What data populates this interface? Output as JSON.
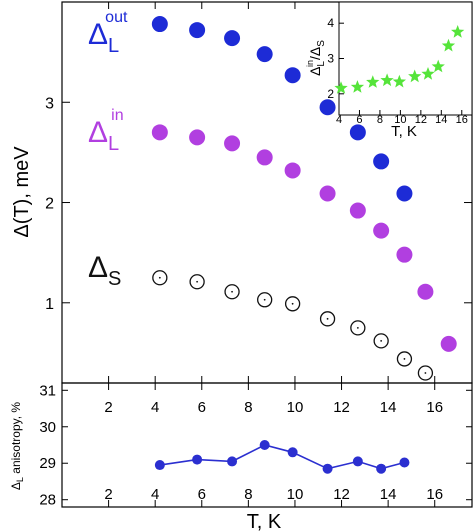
{
  "chart_data": [
    {
      "type": "scatter",
      "xlabel": "T, K",
      "ylabel": "Δ(T), meV",
      "xlim": [
        0,
        17.6
      ],
      "ylim": [
        0.2,
        4.0
      ],
      "xticks": [
        2,
        4,
        6,
        8,
        10,
        12,
        14,
        16
      ],
      "xtick_labels": [
        "2",
        "4",
        "6",
        "8",
        "10",
        "12",
        "14",
        "16"
      ],
      "yticks": [
        1,
        2,
        3
      ],
      "ytick_labels": [
        "1",
        "2",
        "3"
      ],
      "grid": false,
      "series": [
        {
          "name": "Δ_L^out",
          "label_main": "Δ",
          "label_sub": "L",
          "label_sup": "out",
          "marker": "filled-circle",
          "color": "#1d2bd6",
          "x": [
            4.2,
            5.8,
            7.3,
            8.7,
            9.9,
            11.4,
            12.7,
            13.7,
            14.7
          ],
          "y": [
            3.78,
            3.72,
            3.64,
            3.48,
            3.27,
            2.95,
            2.7,
            2.41,
            2.09
          ]
        },
        {
          "name": "Δ_L^in",
          "label_main": "Δ",
          "label_sub": "L",
          "label_sup": "in",
          "marker": "filled-circle",
          "color": "#b13fe0",
          "x": [
            4.2,
            5.8,
            7.3,
            8.7,
            9.9,
            11.4,
            12.7,
            13.7,
            14.7,
            15.6,
            16.6
          ],
          "y": [
            2.7,
            2.65,
            2.59,
            2.45,
            2.32,
            2.09,
            1.92,
            1.72,
            1.48,
            1.11,
            0.59
          ]
        },
        {
          "name": "Δ_S",
          "label_main": "Δ",
          "label_sub": "S",
          "marker": "open-circle-dot",
          "color": "#111111",
          "x": [
            4.2,
            5.8,
            7.3,
            8.7,
            9.9,
            11.4,
            12.7,
            13.7,
            14.7,
            15.6
          ],
          "y": [
            1.25,
            1.21,
            1.11,
            1.03,
            0.99,
            0.84,
            0.75,
            0.62,
            0.44,
            0.3
          ]
        }
      ]
    },
    {
      "type": "scatter",
      "role": "inset",
      "xlabel": "T, K",
      "ylabel_main": "Δ",
      "ylabel_sub_1": "L",
      "ylabel_sup": "in",
      "ylabel_sep": "/",
      "ylabel_main_2": "Δ",
      "ylabel_sub_2": "S",
      "xlim": [
        4,
        17
      ],
      "ylim": [
        1.4,
        4.6
      ],
      "xticks": [
        4,
        6,
        8,
        10,
        12,
        14,
        16
      ],
      "xtick_labels": [
        "4",
        "6",
        "8",
        "10",
        "12",
        "14",
        "16"
      ],
      "yticks": [
        2,
        3,
        4
      ],
      "ytick_labels": [
        "2",
        "3",
        "4"
      ],
      "series": [
        {
          "marker": "star",
          "color": "#55e43a",
          "x": [
            4.2,
            5.8,
            7.3,
            8.7,
            9.9,
            11.4,
            12.7,
            13.7,
            14.7,
            15.6
          ],
          "y": [
            2.16,
            2.19,
            2.33,
            2.38,
            2.34,
            2.49,
            2.56,
            2.77,
            3.36,
            3.75
          ]
        }
      ]
    },
    {
      "type": "line",
      "xlabel": "T, K",
      "ylabel": "Δ anisotropy, %",
      "ylabel_main": "Δ",
      "ylabel_sub": "L",
      "ylabel_rest": " anisotropy, %",
      "xlim": [
        0,
        17.6
      ],
      "ylim": [
        27.8,
        31.2
      ],
      "xticks": [
        2,
        4,
        6,
        8,
        10,
        12,
        14,
        16
      ],
      "xtick_labels": [
        "2",
        "4",
        "6",
        "8",
        "10",
        "12",
        "14",
        "16"
      ],
      "yticks": [
        28,
        29,
        30,
        31
      ],
      "ytick_labels": [
        "28",
        "29",
        "30",
        "31"
      ],
      "series": [
        {
          "marker": "filled-circle",
          "color": "#2b2fd0",
          "x": [
            4.2,
            5.8,
            7.3,
            8.7,
            9.9,
            11.4,
            12.7,
            13.7,
            14.7
          ],
          "y": [
            28.95,
            29.1,
            29.05,
            29.5,
            29.3,
            28.85,
            29.05,
            28.85,
            29.02
          ]
        }
      ]
    }
  ]
}
